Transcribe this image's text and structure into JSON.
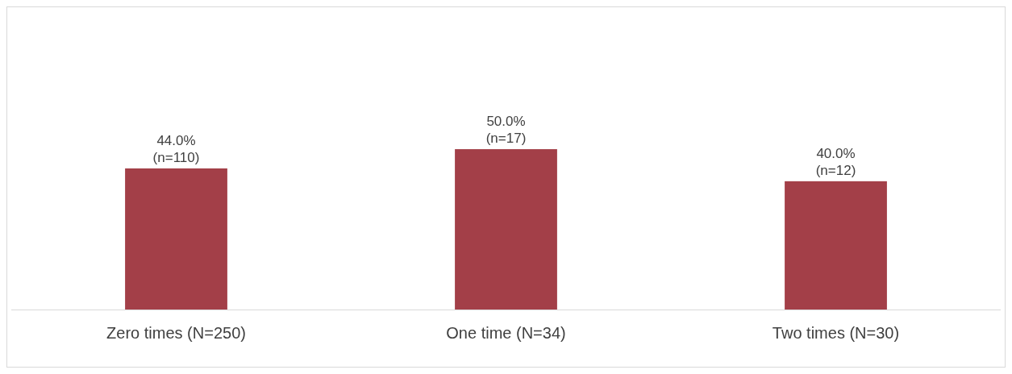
{
  "chart_data": {
    "type": "bar",
    "categories": [
      "Zero times (N=250)",
      "One time (N=34)",
      "Two times (N=30)"
    ],
    "values": [
      44.0,
      50.0,
      40.0
    ],
    "value_labels": [
      "44.0%\n(n=110)",
      "50.0%\n(n=17)",
      "40.0%\n(n=12)"
    ],
    "color": "#a33f48",
    "ylim": [
      0,
      94
    ]
  }
}
